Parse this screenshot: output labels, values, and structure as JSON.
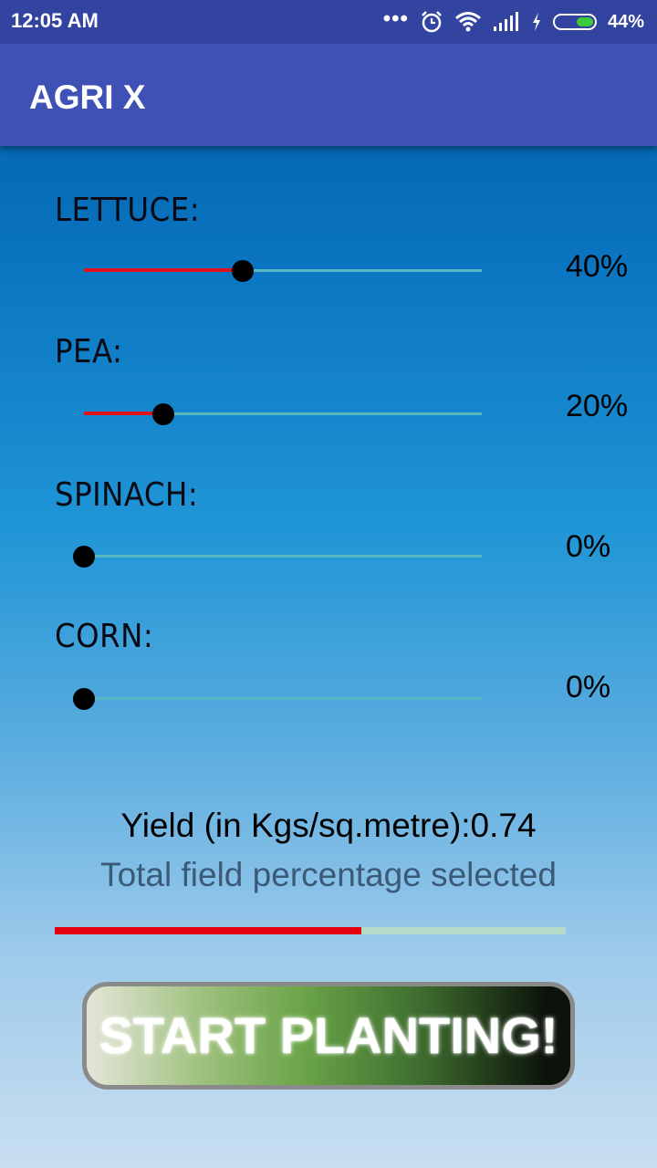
{
  "status_bar": {
    "time": "12:05 AM",
    "battery_text": "44%",
    "battery_level": 0.44,
    "icons": [
      "more-dots-icon",
      "alarm-icon",
      "wifi-icon",
      "signal-icon",
      "charging-icon",
      "battery-icon"
    ]
  },
  "app_bar": {
    "title": "AGRI X"
  },
  "crops": [
    {
      "label": "LETTUCE:",
      "percent_text": "40%",
      "value": 40
    },
    {
      "label": "PEA:",
      "percent_text": "20%",
      "value": 20
    },
    {
      "label": "SPINACH:",
      "percent_text": "0%",
      "value": 0
    },
    {
      "label": "CORN:",
      "percent_text": "0%",
      "value": 0
    }
  ],
  "yield_text": "Yield (in Kgs/sq.metre):0.74",
  "total_label": "Total field percentage selected",
  "total_percent": 60,
  "start_button": "START PLANTING!",
  "colors": {
    "accent": "#e0121c",
    "app_bar": "#3f51b5",
    "status_bar": "#3344a0",
    "track": "#57b8c0"
  }
}
